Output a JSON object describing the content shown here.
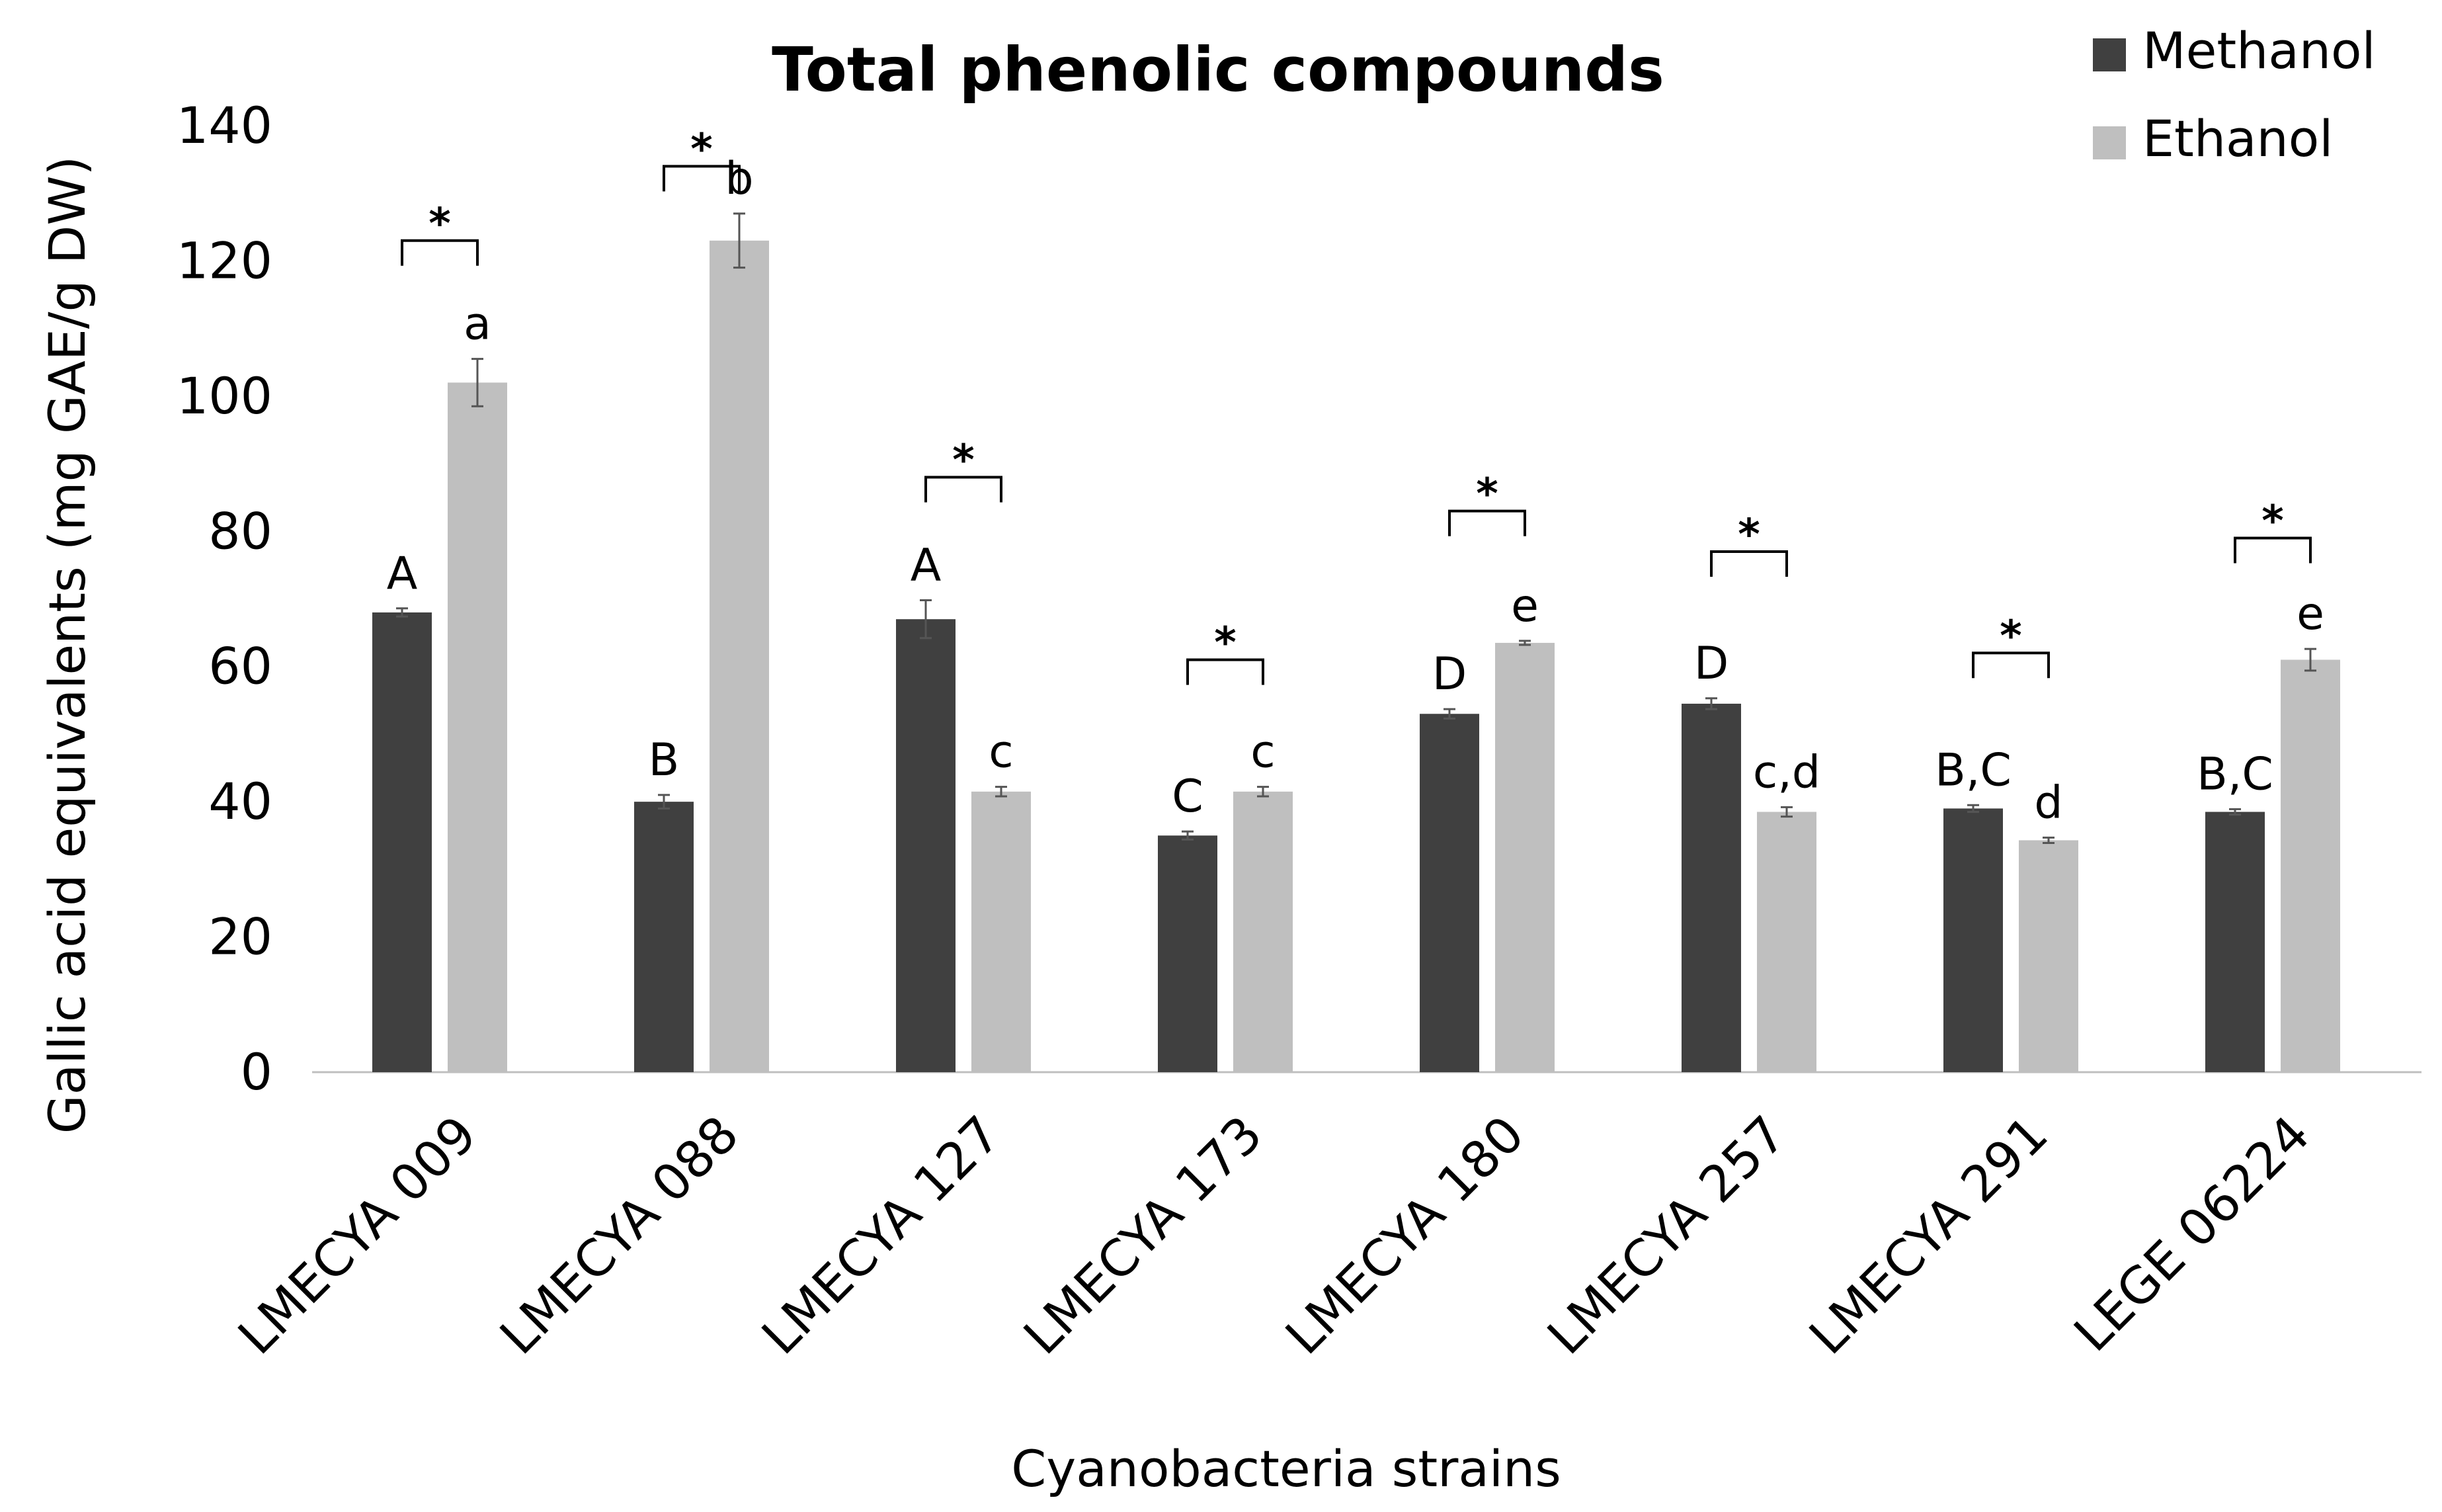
{
  "chart_data": {
    "type": "bar",
    "title": "Total phenolic compounds",
    "xlabel": "Cyanobacteria strains",
    "ylabel": "Gallic acid equivalents (mg GAE/g DW)",
    "ylim": [
      0,
      140
    ],
    "yticks": [
      0,
      20,
      40,
      60,
      80,
      100,
      120,
      140
    ],
    "grid": false,
    "legend_position": "top-right",
    "categories": [
      "LMECYA 009",
      "LMECYA 088",
      "LMECYA 127",
      "LMECYA 173",
      "LMECYA 180",
      "LMECYA 257",
      "LMECYA 291",
      "LEGE 06224"
    ],
    "series": [
      {
        "name": "Methanol",
        "color": "#404040",
        "values": [
          68,
          40,
          67,
          35,
          53,
          54.5,
          39,
          38.5
        ],
        "errors": [
          0.6,
          1.0,
          2.8,
          0.6,
          0.7,
          0.8,
          0.5,
          0.4
        ],
        "labels": [
          "A",
          "B",
          "A",
          "C",
          "D",
          "D",
          "B,C",
          "B,C"
        ]
      },
      {
        "name": "Ethanol",
        "color": "#bfbfbf",
        "values": [
          102,
          123,
          41.5,
          41.5,
          63.5,
          38.5,
          34.3,
          61
        ],
        "errors": [
          3.5,
          4.0,
          0.7,
          0.7,
          0.3,
          0.7,
          0.4,
          1.6
        ],
        "labels": [
          "a",
          "b",
          "c",
          "c",
          "e",
          "c,d",
          "d",
          "e"
        ]
      }
    ],
    "significance": {
      "symbol": "*",
      "bracket_levels": [
        123,
        134,
        88,
        61,
        83,
        77,
        62,
        79
      ]
    }
  }
}
